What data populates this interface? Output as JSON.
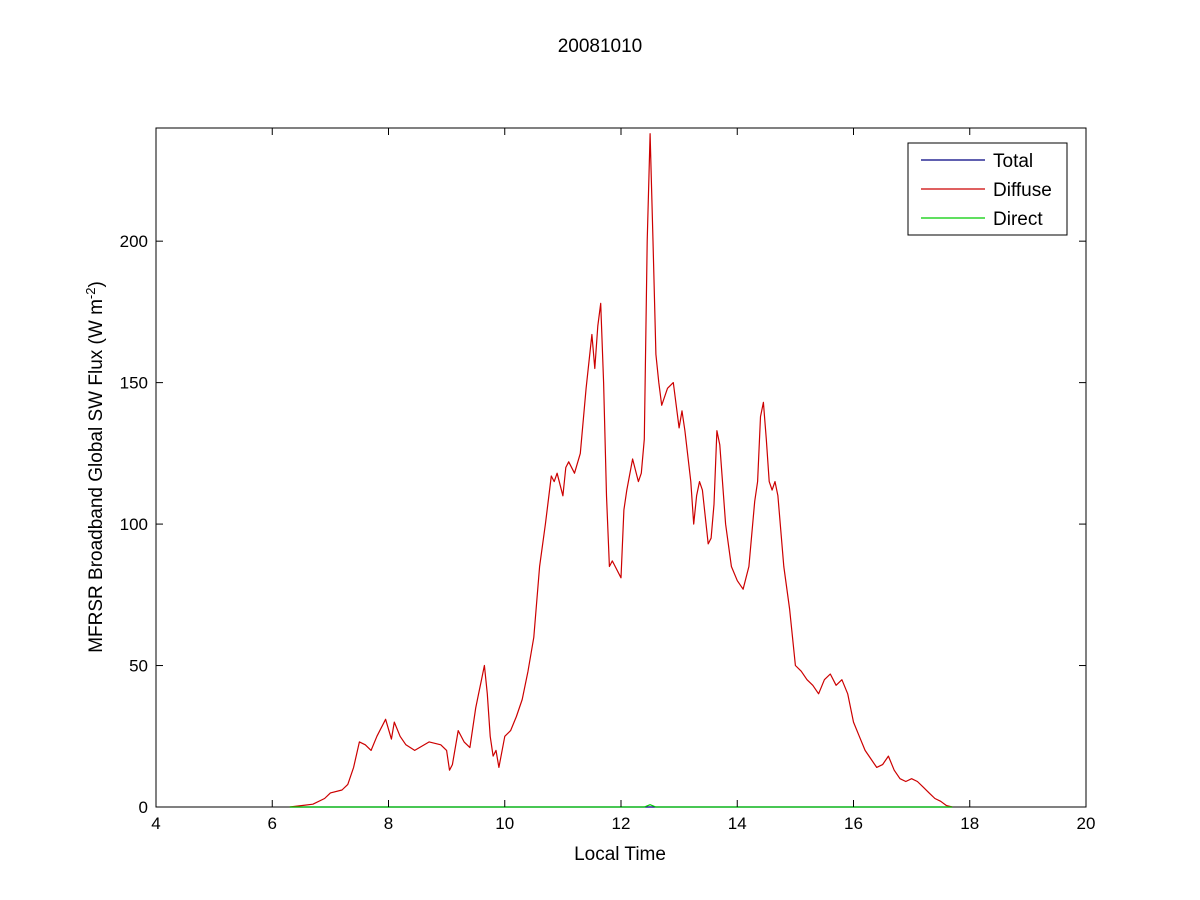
{
  "chart_data": {
    "type": "line",
    "title": "20081010",
    "xlabel": "Local Time",
    "ylabel": {
      "main": "MFRSR Broadband Global SW Flux (W m",
      "superscript": "-2",
      "close": ")"
    },
    "xlim": [
      4,
      20
    ],
    "ylim": [
      0,
      240
    ],
    "xticks": [
      4,
      6,
      8,
      10,
      12,
      14,
      16,
      18,
      20
    ],
    "yticks": [
      0,
      50,
      100,
      150,
      200
    ],
    "grid": false,
    "legend_position": "top-right",
    "series": [
      {
        "name": "Total",
        "color": "#000080",
        "x": [
          6.3,
          17.7
        ],
        "y": [
          0,
          0
        ]
      },
      {
        "name": "Diffuse",
        "color": "#cc0000",
        "x": [
          6.3,
          6.5,
          6.7,
          6.9,
          7.0,
          7.2,
          7.3,
          7.4,
          7.5,
          7.6,
          7.7,
          7.8,
          7.95,
          8.05,
          8.1,
          8.2,
          8.3,
          8.45,
          8.7,
          8.9,
          9.0,
          9.05,
          9.1,
          9.2,
          9.3,
          9.4,
          9.5,
          9.55,
          9.6,
          9.65,
          9.7,
          9.75,
          9.8,
          9.85,
          9.9,
          10.0,
          10.1,
          10.2,
          10.3,
          10.4,
          10.5,
          10.6,
          10.7,
          10.8,
          10.85,
          10.9,
          11.0,
          11.05,
          11.1,
          11.2,
          11.3,
          11.4,
          11.5,
          11.55,
          11.6,
          11.65,
          11.7,
          11.75,
          11.8,
          11.85,
          11.9,
          12.0,
          12.05,
          12.1,
          12.2,
          12.3,
          12.35,
          12.4,
          12.45,
          12.5,
          12.55,
          12.6,
          12.65,
          12.7,
          12.8,
          12.9,
          13.0,
          13.05,
          13.1,
          13.2,
          13.25,
          13.3,
          13.35,
          13.4,
          13.5,
          13.55,
          13.6,
          13.65,
          13.7,
          13.8,
          13.9,
          14.0,
          14.1,
          14.2,
          14.3,
          14.35,
          14.4,
          14.45,
          14.5,
          14.55,
          14.6,
          14.65,
          14.7,
          14.8,
          14.9,
          15.0,
          15.1,
          15.2,
          15.3,
          15.4,
          15.5,
          15.6,
          15.7,
          15.8,
          15.9,
          16.0,
          16.1,
          16.2,
          16.3,
          16.4,
          16.5,
          16.6,
          16.7,
          16.8,
          16.9,
          17.0,
          17.1,
          17.2,
          17.3,
          17.4,
          17.5,
          17.6,
          17.7
        ],
        "y": [
          0,
          0.5,
          1,
          3,
          5,
          6,
          8,
          14,
          23,
          22,
          20,
          25,
          31,
          24,
          30,
          25,
          22,
          20,
          23,
          22,
          20,
          13,
          15,
          27,
          23,
          21,
          35,
          40,
          45,
          50,
          40,
          25,
          18,
          20,
          14,
          25,
          27,
          32,
          38,
          48,
          60,
          85,
          100,
          117,
          115,
          118,
          110,
          120,
          122,
          118,
          125,
          148,
          167,
          155,
          170,
          178,
          150,
          110,
          85,
          87,
          85,
          81,
          105,
          112,
          123,
          115,
          118,
          130,
          200,
          238,
          200,
          160,
          150,
          142,
          148,
          150,
          134,
          140,
          133,
          115,
          100,
          110,
          115,
          112,
          93,
          95,
          107,
          133,
          128,
          100,
          85,
          80,
          77,
          85,
          108,
          115,
          138,
          143,
          130,
          115,
          112,
          115,
          110,
          85,
          70,
          50,
          48,
          45,
          43,
          40,
          45,
          47,
          43,
          45,
          40,
          30,
          25,
          20,
          17,
          14,
          15,
          18,
          13,
          10,
          9,
          10,
          9,
          7,
          5,
          3,
          2,
          0.5,
          0
        ]
      },
      {
        "name": "Direct",
        "color": "#00cc00",
        "x": [
          6.3,
          12.4,
          12.5,
          12.6,
          17.7
        ],
        "y": [
          0,
          0,
          0.8,
          0,
          0
        ]
      }
    ]
  }
}
